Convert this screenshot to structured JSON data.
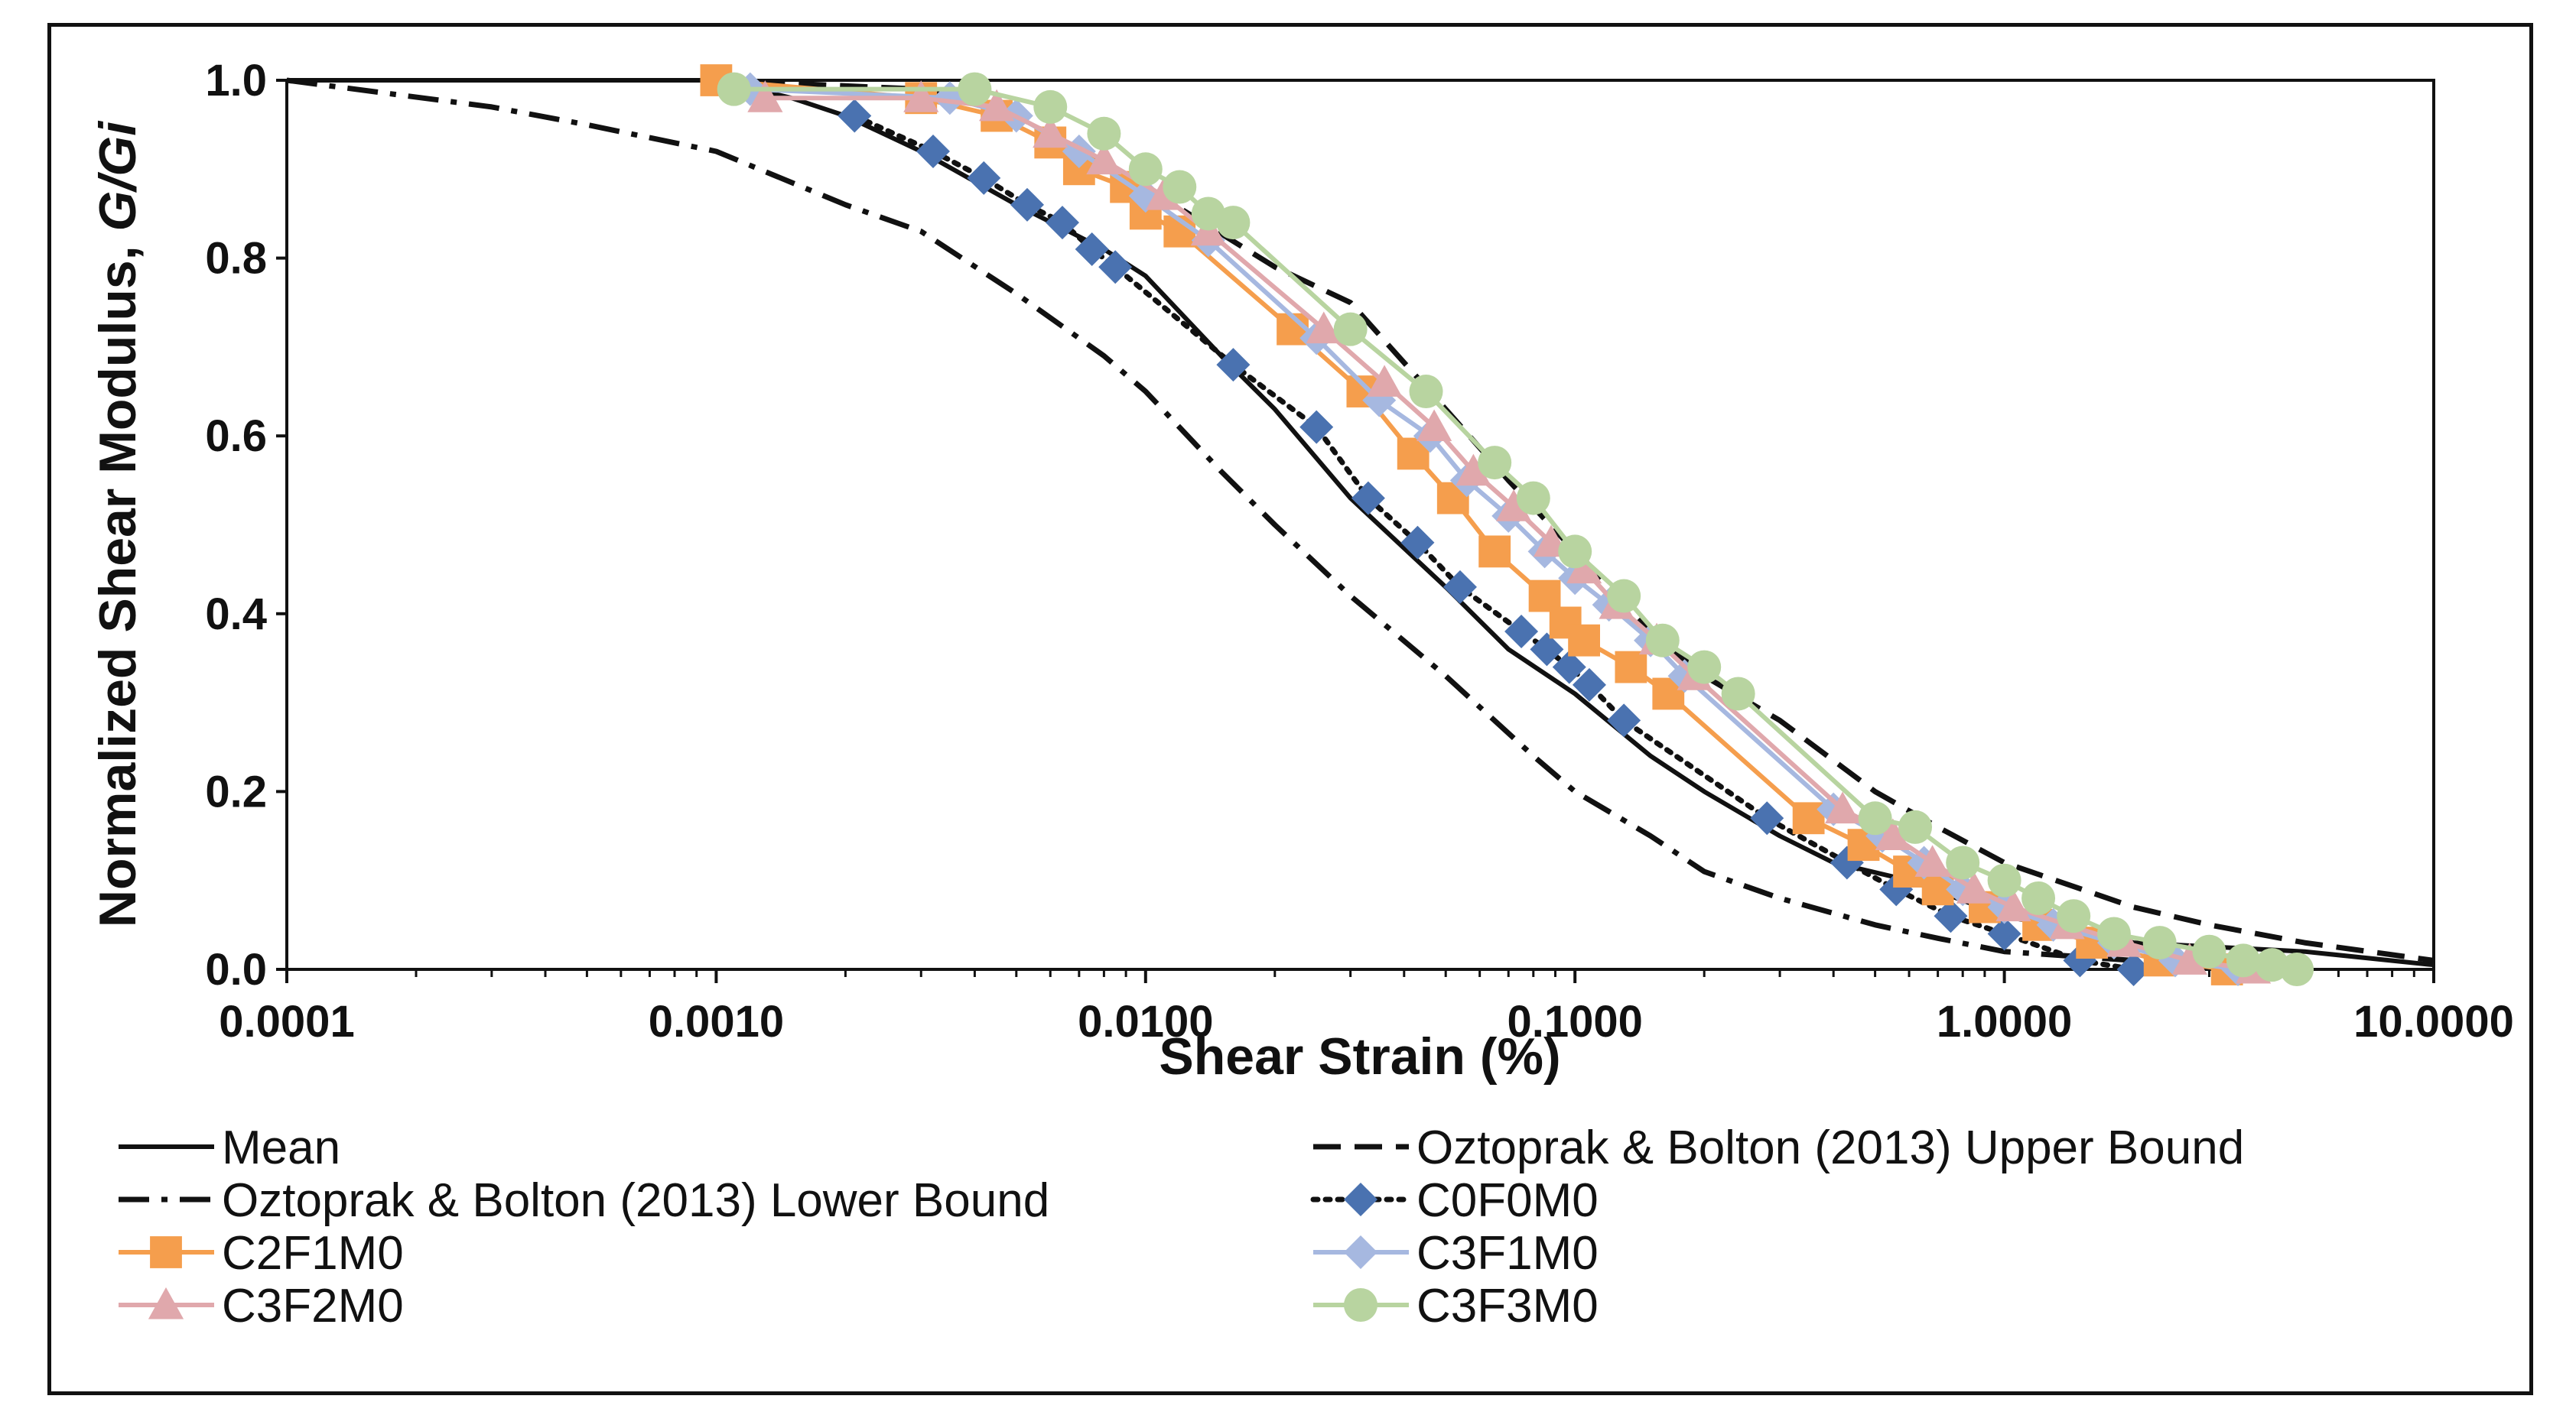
{
  "chart_data": {
    "type": "line",
    "title": "",
    "xlabel": "Shear Strain (%)",
    "ylabel_main": "Normalized Shear Modulus, ",
    "ylabel_italic": "G/Gi",
    "xscale": "log",
    "xlim": [
      0.0001,
      10
    ],
    "ylim": [
      0,
      1
    ],
    "x_ticks": [
      0.0001,
      0.001,
      0.01,
      0.1,
      1,
      10
    ],
    "x_tick_labels": [
      "0.0001",
      "0.0010",
      "0.0100",
      "0.1000",
      "1.0000",
      "10.0000"
    ],
    "y_ticks": [
      0,
      0.2,
      0.4,
      0.6,
      0.8,
      1.0
    ],
    "y_tick_labels": [
      "0.0",
      "0.2",
      "0.4",
      "0.6",
      "0.8",
      "1.0"
    ],
    "grid": false,
    "legend_position": "bottom",
    "series": [
      {
        "name": "Mean",
        "color": "#111111",
        "line": "solid",
        "marker": "none",
        "x": [
          0.0001,
          0.001,
          0.0015,
          0.002,
          0.003,
          0.005,
          0.008,
          0.01,
          0.015,
          0.02,
          0.03,
          0.05,
          0.07,
          0.1,
          0.15,
          0.2,
          0.3,
          0.4,
          0.6,
          1.0,
          2.0,
          5.0,
          10.0
        ],
        "y": [
          1.0,
          1.0,
          0.98,
          0.96,
          0.92,
          0.86,
          0.81,
          0.78,
          0.69,
          0.63,
          0.53,
          0.43,
          0.36,
          0.31,
          0.24,
          0.2,
          0.15,
          0.12,
          0.1,
          0.06,
          0.03,
          0.02,
          0.005
        ]
      },
      {
        "name": "Oztoprak & Bolton (2013) Upper Bound",
        "color": "#111111",
        "line": "dashed",
        "marker": "none",
        "x": [
          0.001,
          0.003,
          0.005,
          0.01,
          0.02,
          0.03,
          0.05,
          0.07,
          0.1,
          0.15,
          0.2,
          0.3,
          0.5,
          0.7,
          1.0,
          2.0,
          3.0,
          5.0,
          10.0
        ],
        "y": [
          1.0,
          0.99,
          0.96,
          0.88,
          0.79,
          0.75,
          0.63,
          0.55,
          0.47,
          0.38,
          0.33,
          0.28,
          0.2,
          0.16,
          0.12,
          0.07,
          0.05,
          0.03,
          0.01
        ]
      },
      {
        "name": "Oztoprak & Bolton (2013) Lower Bound",
        "color": "#111111",
        "line": "dashdot",
        "marker": "none",
        "x": [
          0.0001,
          0.0003,
          0.0005,
          0.001,
          0.002,
          0.003,
          0.005,
          0.008,
          0.01,
          0.015,
          0.02,
          0.03,
          0.05,
          0.08,
          0.1,
          0.15,
          0.2,
          0.3,
          0.5,
          0.7,
          1.0,
          2.0,
          5.0
        ],
        "y": [
          1.0,
          0.97,
          0.95,
          0.92,
          0.86,
          0.83,
          0.76,
          0.69,
          0.65,
          0.56,
          0.5,
          0.42,
          0.33,
          0.24,
          0.2,
          0.15,
          0.11,
          0.08,
          0.05,
          0.035,
          0.02,
          0.01,
          0.003
        ]
      },
      {
        "name": "C0F0M0",
        "color": "#4a72b0",
        "line": "dotted",
        "marker": "diamond",
        "x": [
          0.0021,
          0.0032,
          0.0042,
          0.0053,
          0.0064,
          0.0075,
          0.0085,
          0.016,
          0.025,
          0.033,
          0.043,
          0.054,
          0.075,
          0.086,
          0.097,
          0.108,
          0.13,
          0.28,
          0.43,
          0.56,
          0.75,
          1.0,
          1.5,
          2.0
        ],
        "y": [
          0.96,
          0.92,
          0.89,
          0.86,
          0.84,
          0.81,
          0.79,
          0.68,
          0.61,
          0.53,
          0.48,
          0.43,
          0.38,
          0.36,
          0.34,
          0.32,
          0.28,
          0.17,
          0.12,
          0.09,
          0.06,
          0.04,
          0.01,
          0.0
        ]
      },
      {
        "name": "C2F1M0",
        "color": "#f59e4d",
        "line": "solid",
        "marker": "square",
        "x": [
          0.001,
          0.003,
          0.0045,
          0.006,
          0.007,
          0.009,
          0.01,
          0.012,
          0.022,
          0.032,
          0.042,
          0.052,
          0.065,
          0.085,
          0.095,
          0.105,
          0.135,
          0.165,
          0.35,
          0.47,
          0.6,
          0.7,
          0.9,
          1.2,
          1.6,
          2.3,
          3.3
        ],
        "y": [
          1.0,
          0.98,
          0.96,
          0.93,
          0.9,
          0.88,
          0.85,
          0.83,
          0.72,
          0.65,
          0.58,
          0.53,
          0.47,
          0.42,
          0.39,
          0.37,
          0.34,
          0.31,
          0.17,
          0.14,
          0.11,
          0.09,
          0.07,
          0.05,
          0.03,
          0.01,
          0.0
        ]
      },
      {
        "name": "C3F1M0",
        "color": "#a6b8e0",
        "line": "solid",
        "marker": "diamond",
        "x": [
          0.0012,
          0.0035,
          0.005,
          0.007,
          0.01,
          0.014,
          0.025,
          0.035,
          0.046,
          0.056,
          0.07,
          0.085,
          0.1,
          0.12,
          0.15,
          0.18,
          0.4,
          0.52,
          0.65,
          0.8,
          1.0,
          1.3,
          1.8,
          2.5,
          3.5
        ],
        "y": [
          0.99,
          0.98,
          0.96,
          0.92,
          0.87,
          0.82,
          0.71,
          0.64,
          0.6,
          0.55,
          0.51,
          0.47,
          0.44,
          0.41,
          0.37,
          0.33,
          0.18,
          0.15,
          0.12,
          0.09,
          0.07,
          0.05,
          0.03,
          0.01,
          0.0
        ]
      },
      {
        "name": "C3F2M0",
        "color": "#e0a8ac",
        "line": "solid",
        "marker": "triangle",
        "x": [
          0.0013,
          0.003,
          0.0045,
          0.006,
          0.008,
          0.011,
          0.014,
          0.026,
          0.036,
          0.047,
          0.058,
          0.072,
          0.088,
          0.105,
          0.125,
          0.155,
          0.19,
          0.42,
          0.55,
          0.68,
          0.85,
          1.05,
          1.4,
          1.9,
          2.7,
          3.8
        ],
        "y": [
          0.98,
          0.98,
          0.97,
          0.94,
          0.91,
          0.87,
          0.83,
          0.72,
          0.66,
          0.61,
          0.56,
          0.52,
          0.48,
          0.45,
          0.41,
          0.37,
          0.33,
          0.18,
          0.15,
          0.12,
          0.09,
          0.07,
          0.05,
          0.03,
          0.01,
          0.0
        ]
      },
      {
        "name": "C3F3M0",
        "color": "#b8d4a0",
        "line": "solid",
        "marker": "circle",
        "x": [
          0.0011,
          0.004,
          0.006,
          0.008,
          0.01,
          0.012,
          0.014,
          0.016,
          0.03,
          0.045,
          0.065,
          0.08,
          0.1,
          0.13,
          0.16,
          0.2,
          0.24,
          0.5,
          0.62,
          0.8,
          1.0,
          1.2,
          1.45,
          1.8,
          2.3,
          3.0,
          3.6,
          4.2,
          4.8
        ],
        "y": [
          0.99,
          0.99,
          0.97,
          0.94,
          0.9,
          0.88,
          0.85,
          0.84,
          0.72,
          0.65,
          0.57,
          0.53,
          0.47,
          0.42,
          0.37,
          0.34,
          0.31,
          0.17,
          0.16,
          0.12,
          0.1,
          0.08,
          0.06,
          0.04,
          0.03,
          0.02,
          0.01,
          0.005,
          0.0
        ]
      }
    ]
  }
}
